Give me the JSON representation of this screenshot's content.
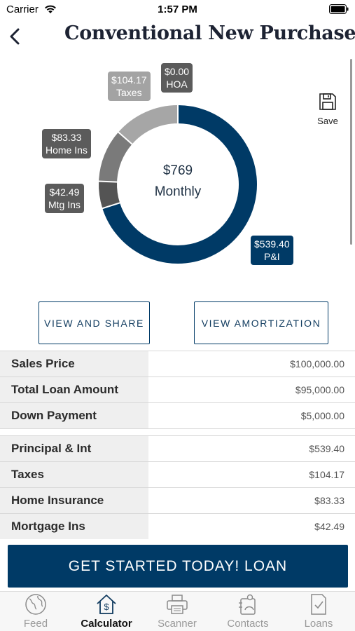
{
  "status_bar": {
    "carrier": "Carrier",
    "time": "1:57 PM"
  },
  "header": {
    "title": "Conventional New Purchase",
    "back_icon": "chevron-left-icon"
  },
  "chart": {
    "center_amount": "$769",
    "center_period": "Monthly",
    "callouts": {
      "taxes": {
        "amount": "$104.17",
        "label": "Taxes"
      },
      "hoa": {
        "amount": "$0.00",
        "label": "HOA"
      },
      "home_ins": {
        "amount": "$83.33",
        "label": "Home Ins"
      },
      "mtg_ins": {
        "amount": "$42.49",
        "label": "Mtg Ins"
      },
      "pi": {
        "amount": "$539.40",
        "label": "P&I"
      }
    },
    "colors": {
      "pi": "#003a66",
      "mtg_ins": "#545454",
      "home_ins": "#7a7a7a",
      "taxes": "#a6a6a6",
      "hoa": "#cfcfcf"
    }
  },
  "chart_data": {
    "type": "pie",
    "categories": [
      "P&I",
      "Mtg Ins",
      "Home Ins",
      "Taxes",
      "HOA"
    ],
    "values": [
      539.4,
      42.49,
      83.33,
      104.17,
      0.0
    ],
    "title": "$769 Monthly"
  },
  "save": {
    "label": "Save",
    "icon": "floppy-disk-icon"
  },
  "actions": {
    "view_share": "VIEW AND SHARE",
    "view_amortization": "VIEW AMORTIZATION"
  },
  "summary": {
    "group1": [
      {
        "label": "Sales Price",
        "value": "$100,000.00"
      },
      {
        "label": "Total Loan Amount",
        "value": "$95,000.00"
      },
      {
        "label": "Down Payment",
        "value": "$5,000.00"
      }
    ],
    "group2": [
      {
        "label": "Principal & Int",
        "value": "$539.40"
      },
      {
        "label": "Taxes",
        "value": "$104.17"
      },
      {
        "label": "Home Insurance",
        "value": "$83.33"
      },
      {
        "label": "Mortgage Ins",
        "value": "$42.49"
      }
    ]
  },
  "cta": {
    "label": "GET STARTED TODAY! LOAN"
  },
  "tabs": [
    {
      "label": "Feed",
      "icon": "globe-icon",
      "active": false
    },
    {
      "label": "Calculator",
      "icon": "house-dollar-icon",
      "active": true
    },
    {
      "label": "Scanner",
      "icon": "printer-icon",
      "active": false
    },
    {
      "label": "Contacts",
      "icon": "contact-card-icon",
      "active": false
    },
    {
      "label": "Loans",
      "icon": "document-check-icon",
      "active": false
    }
  ]
}
